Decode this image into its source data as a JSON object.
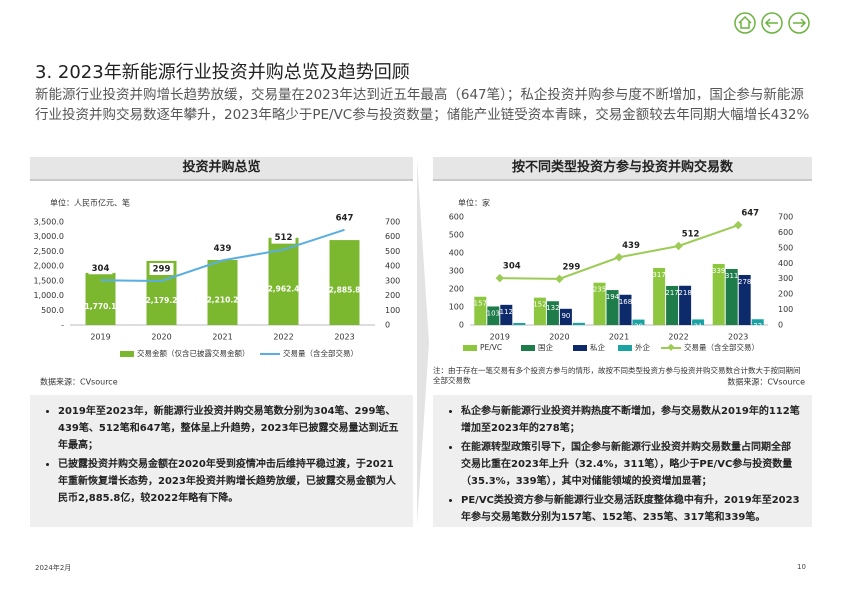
{
  "header": {
    "title": "3. 2023年新能源行业投资并购总览及趋势回顾",
    "subtitle": "新能源行业投资并购增长趋势放缓，交易量在2023年达到近五年最高（647笔）；私企投资并购参与度不断增加，国企参与新能源行业投资并购交易数逐年攀升，2023年略少于PE/VC参与投资数量；储能产业链受资本青睐，交易金额较去年同期大幅增长432%"
  },
  "chart_data": [
    {
      "type": "combo",
      "title": "投资并购总览",
      "unit": "单位：人民币亿元、笔",
      "categories": [
        "2019",
        "2020",
        "2021",
        "2022",
        "2023"
      ],
      "series": [
        {
          "name": "交易金额（仅含已披露交易金额）",
          "type": "bar",
          "color": "#7cb82f",
          "values": [
            1770.1,
            2179.2,
            2210.2,
            2962.4,
            2885.8
          ],
          "value_labels": [
            "1,770.1",
            "2,179.2",
            "2,210.2",
            "2,962.4",
            "2,885.8"
          ]
        },
        {
          "name": "交易量（含全部交易）",
          "type": "line",
          "axis": "y2",
          "color": "#5aaee0",
          "values": [
            304,
            299,
            439,
            512,
            647
          ]
        }
      ],
      "ylim": [
        0,
        3500
      ],
      "yticks": [
        {
          "value": 0,
          "label": "-"
        },
        {
          "value": 500,
          "label": "500.0"
        },
        {
          "value": 1000,
          "label": "1,000.0"
        },
        {
          "value": 1500,
          "label": "1,500.0"
        },
        {
          "value": 2000,
          "label": "2,000.0"
        },
        {
          "value": 2500,
          "label": "2,500.0"
        },
        {
          "value": 3000,
          "label": "3,000.0"
        },
        {
          "value": 3500,
          "label": "3,500.0"
        }
      ],
      "y2lim": [
        0,
        700
      ],
      "y2ticks": [
        0,
        100,
        200,
        300,
        400,
        500,
        600,
        700
      ],
      "source": "数据来源：CVsource"
    },
    {
      "type": "combo",
      "title": "按不同类型投资方参与投资并购交易数",
      "unit": "单位：家",
      "categories": [
        "2019",
        "2020",
        "2021",
        "2022",
        "2023"
      ],
      "series": [
        {
          "name": "PE/VC",
          "type": "bar",
          "color": "#8dc63f",
          "values": [
            157,
            152,
            235,
            317,
            339
          ]
        },
        {
          "name": "国企",
          "type": "bar",
          "color": "#1e7b4a",
          "values": [
            103,
            132,
            194,
            217,
            311
          ]
        },
        {
          "name": "私企",
          "type": "bar",
          "color": "#0d2a6b",
          "values": [
            112,
            90,
            168,
            218,
            278
          ]
        },
        {
          "name": "外企",
          "type": "bar",
          "color": "#1aa3a3",
          "values": [
            11,
            12,
            30,
            31,
            32
          ]
        },
        {
          "name": "交易量（含全部交易）",
          "type": "line",
          "axis": "y2",
          "color": "#9ccc55",
          "values": [
            304,
            299,
            439,
            512,
            647
          ]
        }
      ],
      "ylim": [
        0,
        600
      ],
      "yticks": [
        0,
        100,
        200,
        300,
        400,
        500,
        600
      ],
      "y2lim": [
        0,
        700
      ],
      "y2ticks": [
        0,
        100,
        200,
        300,
        400,
        500,
        600,
        700
      ],
      "note": "注：由于存在一笔交易有多个投资方参与的情形，故按不同类型投资方参与投资并购交易数合计数大于按同期间全部交易数",
      "source": "数据来源：CVsource"
    }
  ],
  "summary": {
    "left": [
      "2019年至2023年，新能源行业投资并购交易笔数分别为304笔、299笔、439笔、512笔和647笔，整体呈上升趋势，2023年已披露交易量达到近五年最高；",
      "已披露投资并购交易金额在2020年受到疫情冲击后维持平稳过渡，于2021年重新恢复增长态势，2023年投资并购增长趋势放缓，已披露交易金额为人民币2,885.8亿，较2022年略有下降。"
    ],
    "right": [
      "私企参与新能源行业投资并购热度不断增加，参与交易数从2019年的112笔增加至2023年的278笔；",
      "在能源转型政策引导下，国企参与新能源行业投资并购交易数量占同期全部交易比重在2023年上升（32.4%，311笔），略少于PE/VC参与投资数量（35.3%，339笔），其中对储能领域的投资增加显著；",
      "PE/VC类投资方参与新能源行业交易活跃度整体稳中有升，2019年至2023年参与交易笔数分别为157笔、152笔、235笔、317笔和339笔。"
    ]
  },
  "footer": {
    "date": "2024年2月",
    "page": "10"
  }
}
